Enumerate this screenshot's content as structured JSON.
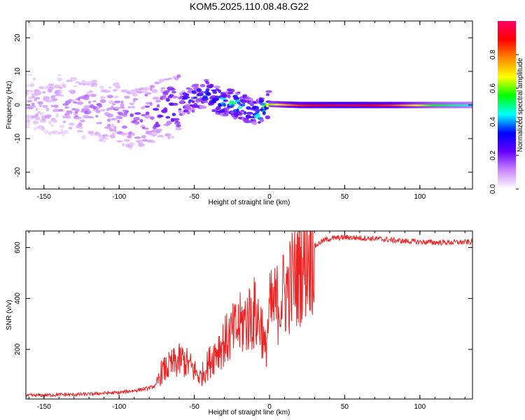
{
  "figure_title": "KOM5.2025.110.08.48.G22",
  "chart_data": [
    {
      "type": "heatmap",
      "title": "KOM5.2025.110.08.48.G22",
      "xlabel": "Height of straight line (km)",
      "ylabel": "Frequency (Hz)",
      "xlim": [
        -162,
        135
      ],
      "ylim": [
        -25,
        25
      ],
      "xticks": [
        -150,
        -100,
        -50,
        0,
        50,
        100
      ],
      "yticks": [
        -20,
        -10,
        0,
        10,
        20
      ],
      "grid": false,
      "colorbar": {
        "label": "Normalized spectral amplitude",
        "range": [
          0,
          1
        ],
        "ticks": [
          0.0,
          0.2,
          0.4,
          0.6,
          0.8
        ],
        "colormap": [
          "#ffffff",
          "#cc88ff",
          "#6600ff",
          "#0000ff",
          "#00ffff",
          "#00ff00",
          "#ffff00",
          "#ff8800",
          "#ff0000",
          "#ff0066"
        ]
      },
      "ridge": [
        {
          "x": -160,
          "freq": 0.5,
          "amp": 0.1
        },
        {
          "x": -140,
          "freq": 0.0,
          "amp": 0.12
        },
        {
          "x": -120,
          "freq": -1.0,
          "amp": 0.15
        },
        {
          "x": -100,
          "freq": -3.0,
          "amp": 0.15
        },
        {
          "x": -90,
          "freq": -4.0,
          "amp": 0.18
        },
        {
          "x": -80,
          "freq": -2.5,
          "amp": 0.2
        },
        {
          "x": -70,
          "freq": -1.5,
          "amp": 0.25
        },
        {
          "x": -60,
          "freq": 0.0,
          "amp": 0.3
        },
        {
          "x": -50,
          "freq": 2.0,
          "amp": 0.35
        },
        {
          "x": -42,
          "freq": 3.5,
          "amp": 0.35
        },
        {
          "x": -35,
          "freq": 1.5,
          "amp": 0.45
        },
        {
          "x": -25,
          "freq": 0.5,
          "amp": 0.45
        },
        {
          "x": -15,
          "freq": -1.0,
          "amp": 0.4
        },
        {
          "x": -8,
          "freq": -2.5,
          "amp": 0.45
        },
        {
          "x": -3,
          "freq": -1.0,
          "amp": 0.5
        },
        {
          "x": 0,
          "freq": 0.3,
          "amp": 0.6
        },
        {
          "x": 20,
          "freq": 0.0,
          "amp": 0.85
        },
        {
          "x": 50,
          "freq": 0.0,
          "amp": 0.95
        },
        {
          "x": 80,
          "freq": 0.0,
          "amp": 0.85
        },
        {
          "x": 110,
          "freq": 0.0,
          "amp": 0.55
        },
        {
          "x": 135,
          "freq": 0.0,
          "amp": 0.45
        }
      ]
    },
    {
      "type": "line",
      "xlabel": "Height of straight line (km)",
      "ylabel": "SNR (v/v)",
      "xlim": [
        -162,
        135
      ],
      "ylim": [
        5,
        665
      ],
      "xticks": [
        -150,
        -100,
        -50,
        0,
        50,
        100
      ],
      "yticks": [
        200,
        400,
        600
      ],
      "grid": false,
      "line_color": "#ee2222",
      "series": [
        {
          "x": [
            -162,
            -150,
            -140,
            -130,
            -120,
            -110,
            -100,
            -90,
            -80,
            -75,
            -72,
            -65,
            -58,
            -52,
            -46,
            -40,
            -35,
            -30,
            -25,
            -20,
            -15,
            -10,
            -5,
            -3,
            0,
            5,
            10,
            15,
            20,
            25,
            30,
            35,
            40,
            50,
            60,
            70,
            80,
            90,
            100,
            110,
            120,
            135
          ],
          "y": [
            18,
            20,
            22,
            22,
            24,
            28,
            30,
            38,
            48,
            60,
            110,
            140,
            160,
            130,
            90,
            150,
            200,
            230,
            260,
            290,
            320,
            340,
            290,
            180,
            350,
            380,
            420,
            470,
            520,
            570,
            605,
            625,
            635,
            640,
            638,
            635,
            630,
            625,
            622,
            620,
            620,
            622
          ]
        }
      ]
    }
  ]
}
